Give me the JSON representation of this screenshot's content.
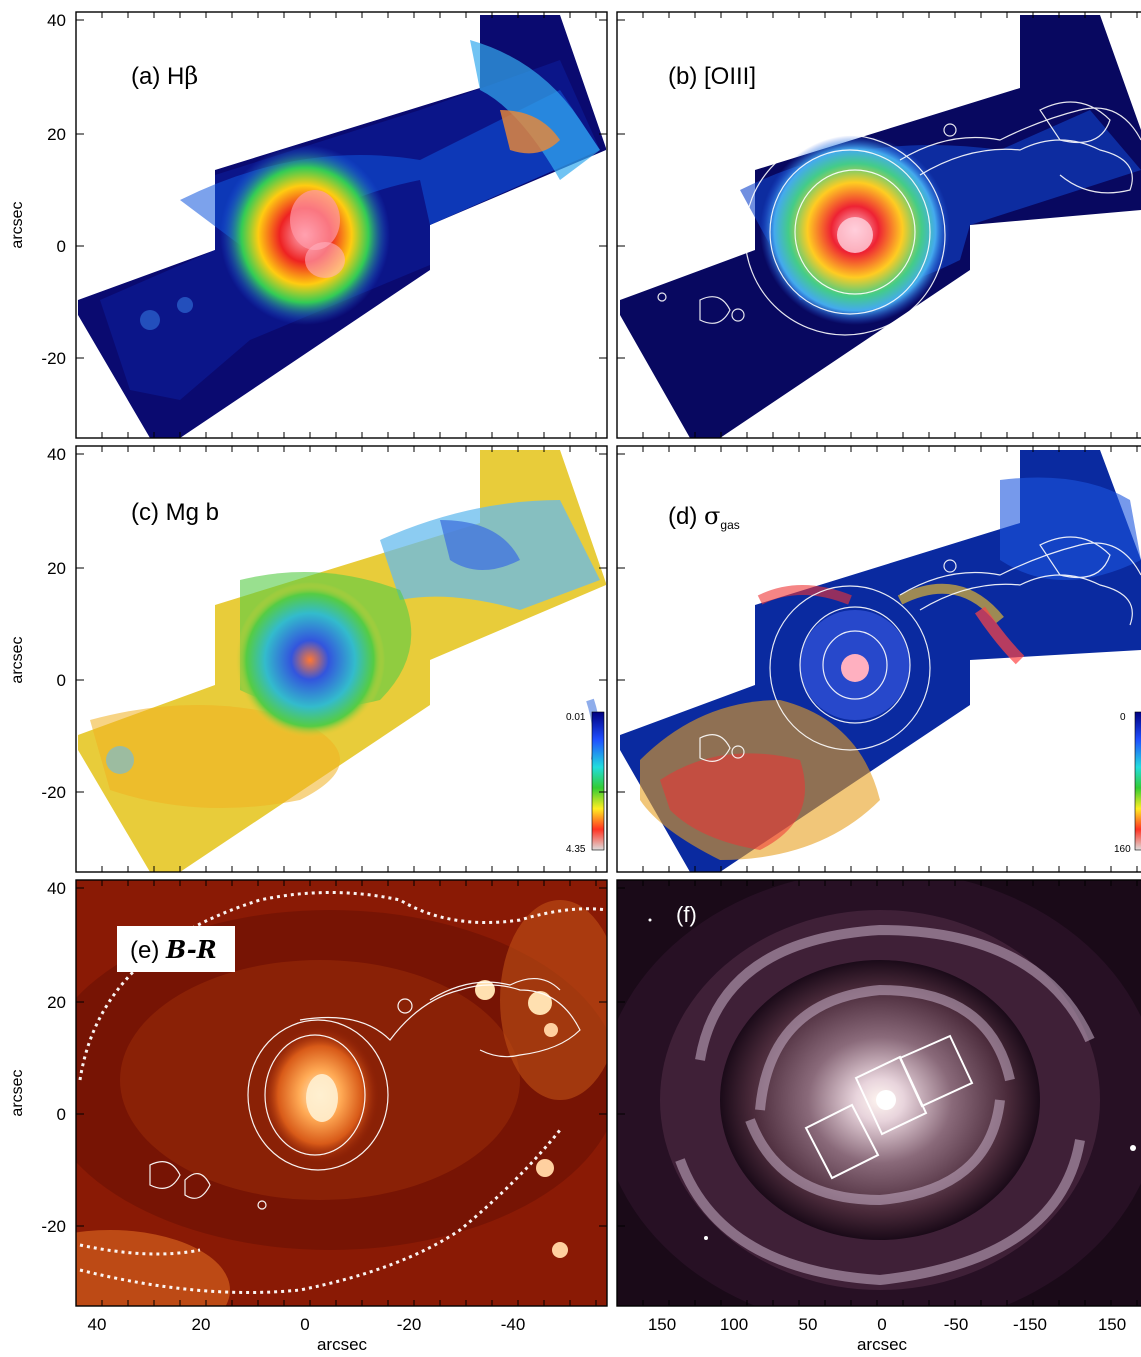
{
  "figure": {
    "y_axis_label": "arcsec",
    "x_axis_label": "arcsec",
    "y_ticks": [
      "40",
      "20",
      "0",
      "-20"
    ],
    "x_ticks_map": [
      "40",
      "20",
      "0",
      "-20",
      "-40"
    ],
    "x_ticks_image": [
      "150",
      "100",
      "50",
      "0",
      "-50",
      "-150",
      "150"
    ]
  },
  "panels": [
    {
      "key": "a",
      "label_prefix": "(a) H",
      "label_symbol": "β",
      "label_sub": "",
      "colormap": "rainbow"
    },
    {
      "key": "b",
      "label_prefix": "(b) [OIII]",
      "label_symbol": "",
      "label_sub": "",
      "colormap": "rainbow",
      "contours": true
    },
    {
      "key": "c",
      "label_prefix": "(c) Mg b",
      "label_symbol": "",
      "label_sub": "",
      "colormap": "rainbow",
      "colorbar": {
        "top": "0.01",
        "bottom": "4.35"
      }
    },
    {
      "key": "d",
      "label_prefix": "(d) ",
      "label_symbol": "σ",
      "label_sub": "gas",
      "colormap": "rainbow",
      "contours": true,
      "colorbar": {
        "top": "0",
        "bottom": "160"
      }
    },
    {
      "key": "e",
      "label_prefix": "(e) ",
      "label_symbol": "",
      "label_sub": "",
      "label_italic": "B-R",
      "colormap": "heat",
      "contours": true
    },
    {
      "key": "f",
      "label_prefix": "(f)",
      "label_symbol": "",
      "label_sub": "",
      "colormap": "galaxy"
    }
  ],
  "colors": {
    "rainbow_low": "#0a0a8c",
    "rainbow_mid": "#33cc66",
    "rainbow_high": "#ee2222",
    "heat_bg": "#8a1a05",
    "galaxy_bg": "#1a0a18",
    "contour": "#ffffff"
  }
}
